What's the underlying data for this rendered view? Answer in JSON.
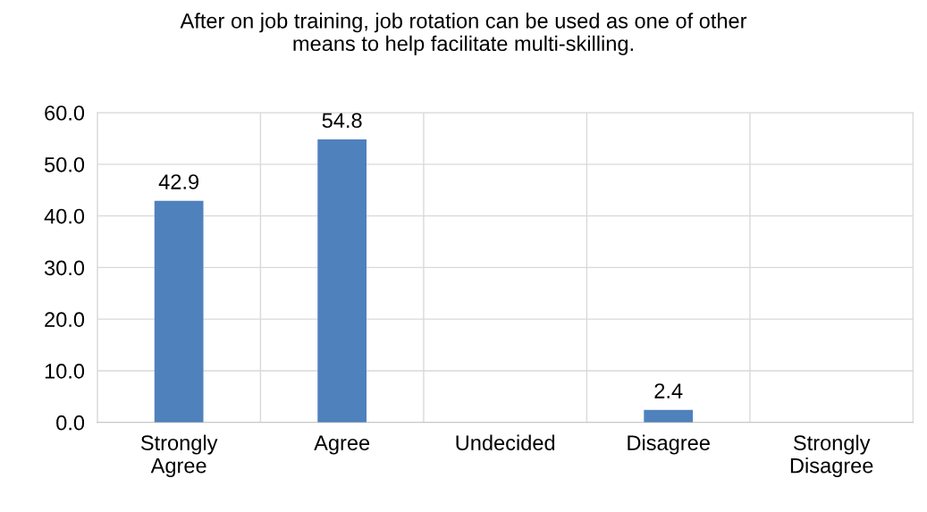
{
  "chart_data": {
    "type": "bar",
    "title": "After on job training, job rotation can be used as one of other\nmeans to help facilitate multi-skilling.",
    "categories": [
      "Strongly\nAgree",
      "Agree",
      "Undecided",
      "Disagree",
      "Strongly\nDisagree"
    ],
    "values": [
      42.9,
      54.8,
      null,
      2.4,
      null
    ],
    "value_labels": [
      "42.9",
      "54.8",
      null,
      "2.4",
      null
    ],
    "color": "#4f81bd",
    "ylim": [
      0,
      60
    ],
    "yticks": [
      {
        "value": 0,
        "label": "0.0"
      },
      {
        "value": 10,
        "label": "10.0"
      },
      {
        "value": 20,
        "label": "20.0"
      },
      {
        "value": 30,
        "label": "30.0"
      },
      {
        "value": 40,
        "label": "40.0"
      },
      {
        "value": 50,
        "label": "50.0"
      },
      {
        "value": 60,
        "label": "60.0"
      }
    ],
    "grid": true
  }
}
